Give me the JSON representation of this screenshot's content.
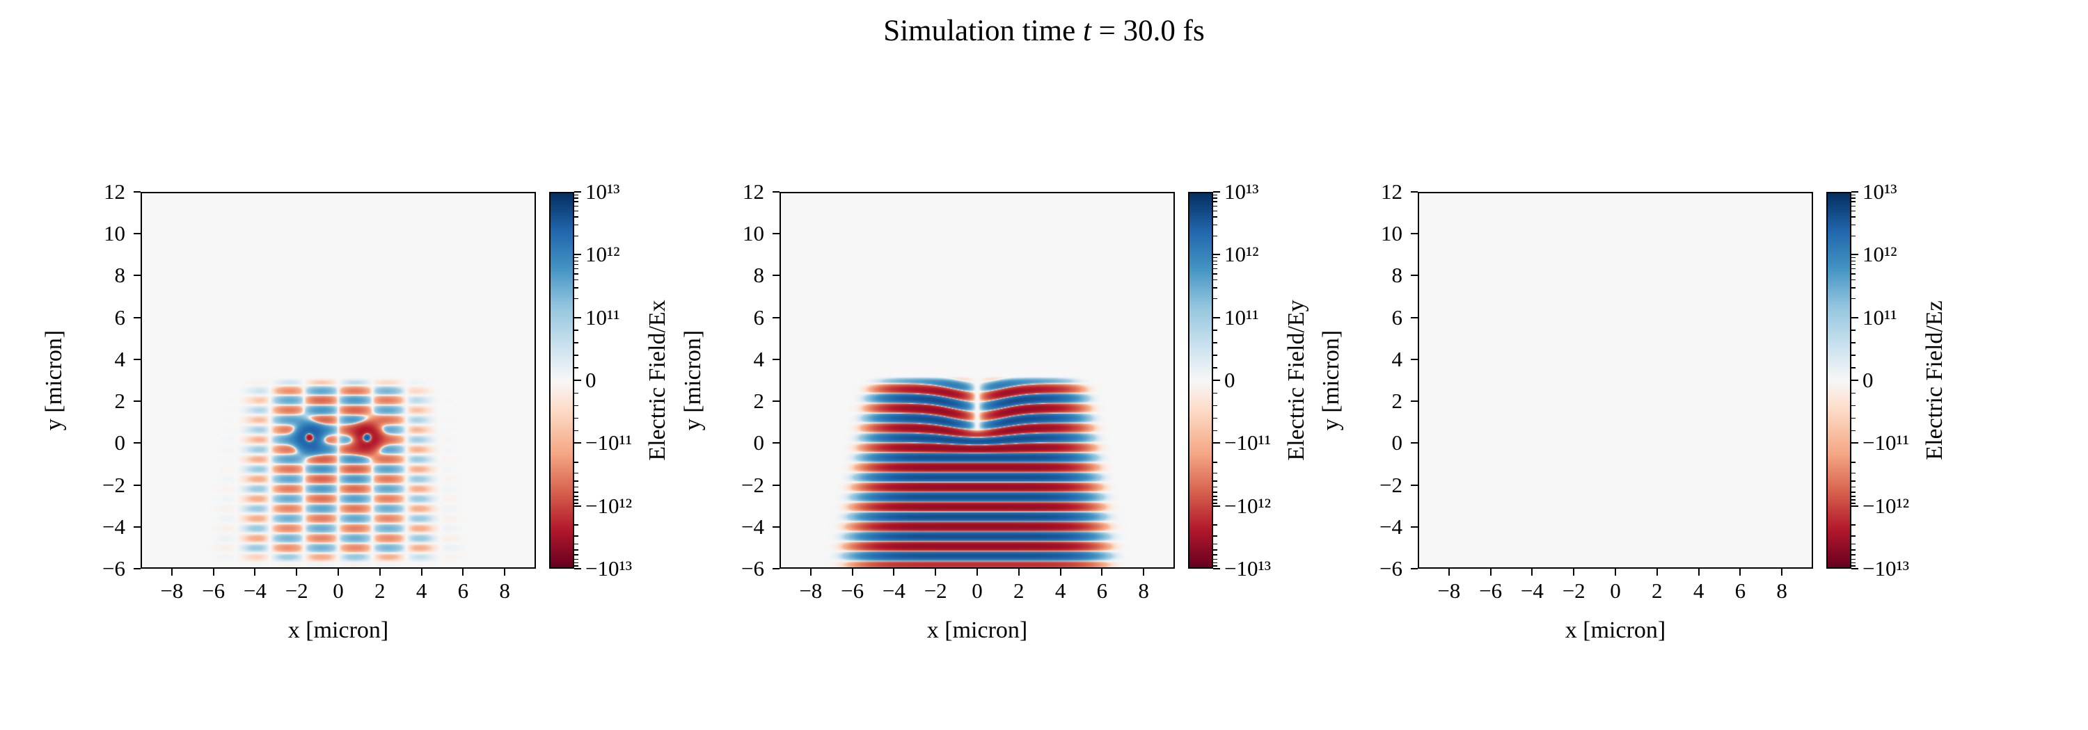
{
  "title": {
    "prefix": "Simulation time ",
    "variable": "t",
    "suffix": " = 30.0 fs"
  },
  "chart_data": {
    "type": "heatmap",
    "title": "Simulation time t = 30.0 fs",
    "time_fs": 30.0,
    "layout": {
      "rows": 1,
      "cols": 3
    },
    "x_axis": {
      "label": "x [micron]",
      "range": [
        -9.5,
        9.5
      ],
      "tick_values": [
        -8,
        -6,
        -4,
        -2,
        0,
        2,
        4,
        6,
        8
      ],
      "tick_labels": [
        "−8",
        "−6",
        "−4",
        "−2",
        "0",
        "2",
        "4",
        "6",
        "8"
      ]
    },
    "y_axis": {
      "label": "y [micron]",
      "range": [
        -6,
        12
      ],
      "tick_values": [
        12,
        10,
        8,
        6,
        4,
        2,
        0,
        -2,
        -4,
        -6
      ],
      "tick_labels": [
        "12",
        "10",
        "8",
        "6",
        "4",
        "2",
        "0",
        "−2",
        "−4",
        "−6"
      ]
    },
    "colorbar": {
      "scale": "symlog",
      "linthresh": 100000000000.0,
      "log_decades": 2,
      "vmin": -10000000000000.0,
      "vmax": 10000000000000.0,
      "tick_values": [
        10000000000000.0,
        1000000000000.0,
        100000000000.0,
        0,
        -100000000000.0,
        -1000000000000.0,
        -10000000000000.0
      ],
      "tick_labels": [
        "10¹³",
        "10¹²",
        "10¹¹",
        "0",
        "−10¹¹",
        "−10¹²",
        "−10¹³"
      ]
    },
    "colormap": {
      "name": "RdBu",
      "background": "#f7f7f7",
      "stops": [
        [
          0.0,
          "#67001f"
        ],
        [
          0.1,
          "#b2182b"
        ],
        [
          0.2,
          "#d6604d"
        ],
        [
          0.3,
          "#f4a582"
        ],
        [
          0.42,
          "#fddbc7"
        ],
        [
          0.5,
          "#f7f7f7"
        ],
        [
          0.58,
          "#d1e5f0"
        ],
        [
          0.7,
          "#92c5de"
        ],
        [
          0.8,
          "#4393c3"
        ],
        [
          0.9,
          "#2166ac"
        ],
        [
          1.0,
          "#053061"
        ]
      ]
    },
    "panels": [
      {
        "id": "Ex",
        "colorbar_label": "Electric Field/Ex",
        "field": {
          "type": "transverse",
          "amplitude": 600000000000.0,
          "wavelength": 0.95,
          "x_width": 4.4,
          "y_bottom": -5.6,
          "y_top": 2.9,
          "spot_amplitude": 4500000000000.0,
          "spots": [
            {
              "x": -1.4,
              "y": 0.25,
              "sign": 1
            },
            {
              "x": 1.4,
              "y": 0.25,
              "sign": -1
            }
          ]
        }
      },
      {
        "id": "Ey",
        "colorbar_label": "Electric Field/Ey",
        "field": {
          "type": "longitudinal",
          "amplitude": 4500000000000.0,
          "wavelength": 0.95,
          "x_width": 5.3,
          "y_bottom": -5.9,
          "y_top": 2.9,
          "notch": {
            "width": 0.95,
            "y_start": 0.2
          }
        }
      },
      {
        "id": "Ez",
        "colorbar_label": "Electric Field/Ez",
        "field": {
          "type": "zero"
        }
      }
    ]
  }
}
